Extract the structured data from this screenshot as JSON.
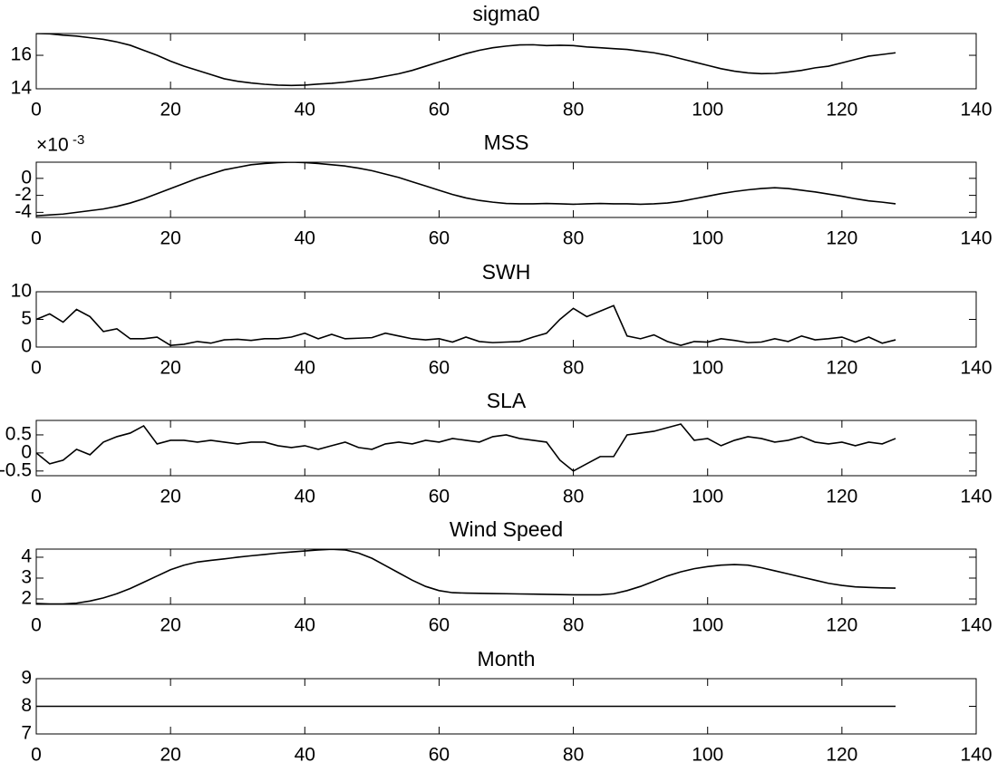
{
  "chart_data": [
    {
      "type": "line",
      "title": "sigma0",
      "color": "#000000",
      "x": [
        0,
        2,
        4,
        6,
        8,
        10,
        12,
        14,
        16,
        18,
        20,
        22,
        24,
        26,
        28,
        30,
        32,
        34,
        36,
        38,
        40,
        42,
        44,
        46,
        48,
        50,
        52,
        54,
        56,
        58,
        60,
        62,
        64,
        66,
        68,
        70,
        72,
        74,
        76,
        78,
        80,
        82,
        84,
        86,
        88,
        90,
        92,
        94,
        96,
        98,
        100,
        102,
        104,
        106,
        108,
        110,
        112,
        114,
        116,
        118,
        120,
        122,
        124,
        126,
        128
      ],
      "values": [
        17.3,
        17.28,
        17.2,
        17.15,
        17.05,
        16.95,
        16.8,
        16.6,
        16.3,
        16.0,
        15.65,
        15.35,
        15.1,
        14.85,
        14.6,
        14.45,
        14.35,
        14.27,
        14.22,
        14.2,
        14.22,
        14.28,
        14.33,
        14.4,
        14.5,
        14.6,
        14.75,
        14.9,
        15.1,
        15.35,
        15.6,
        15.85,
        16.1,
        16.3,
        16.45,
        16.55,
        16.62,
        16.63,
        16.58,
        16.6,
        16.58,
        16.5,
        16.45,
        16.4,
        16.35,
        16.25,
        16.15,
        16.0,
        15.8,
        15.6,
        15.4,
        15.2,
        15.05,
        14.95,
        14.9,
        14.92,
        15.0,
        15.1,
        15.25,
        15.35,
        15.55,
        15.75,
        15.95,
        16.05,
        16.15
      ],
      "xlim": [
        0,
        140
      ],
      "xticks": [
        0,
        20,
        40,
        60,
        80,
        100,
        120,
        140
      ],
      "ylim": [
        14,
        17.3
      ],
      "yticks": [
        14,
        16
      ]
    },
    {
      "type": "line",
      "title": "MSS",
      "color": "#000000",
      "offset_label": {
        "base": "×10",
        "exponent": "-3"
      },
      "x": [
        0,
        2,
        4,
        6,
        8,
        10,
        12,
        14,
        16,
        18,
        20,
        22,
        24,
        26,
        28,
        30,
        32,
        34,
        36,
        38,
        40,
        42,
        44,
        46,
        48,
        50,
        52,
        54,
        56,
        58,
        60,
        62,
        64,
        66,
        68,
        70,
        72,
        74,
        76,
        78,
        80,
        82,
        84,
        86,
        88,
        90,
        92,
        94,
        96,
        98,
        100,
        102,
        104,
        106,
        108,
        110,
        112,
        114,
        116,
        118,
        120,
        122,
        124,
        126,
        128
      ],
      "values": [
        -4.4,
        -4.3,
        -4.2,
        -4.0,
        -3.8,
        -3.6,
        -3.3,
        -2.9,
        -2.4,
        -1.8,
        -1.2,
        -0.6,
        0.0,
        0.5,
        1.0,
        1.3,
        1.6,
        1.75,
        1.85,
        1.9,
        1.85,
        1.75,
        1.6,
        1.45,
        1.2,
        0.9,
        0.5,
        0.1,
        -0.4,
        -0.9,
        -1.4,
        -1.9,
        -2.3,
        -2.6,
        -2.8,
        -2.95,
        -3.0,
        -3.0,
        -2.95,
        -3.0,
        -3.05,
        -3.0,
        -2.95,
        -3.0,
        -3.0,
        -3.05,
        -3.0,
        -2.9,
        -2.7,
        -2.4,
        -2.1,
        -1.8,
        -1.55,
        -1.35,
        -1.2,
        -1.1,
        -1.2,
        -1.4,
        -1.6,
        -1.85,
        -2.1,
        -2.4,
        -2.65,
        -2.8,
        -3.0
      ],
      "xlim": [
        0,
        140
      ],
      "xticks": [
        0,
        20,
        40,
        60,
        80,
        100,
        120,
        140
      ],
      "ylim": [
        -4.6,
        1.9
      ],
      "yticks": [
        -4,
        -2,
        0
      ]
    },
    {
      "type": "line",
      "title": "SWH",
      "color": "#000000",
      "x": [
        0,
        2,
        4,
        6,
        8,
        10,
        12,
        14,
        16,
        18,
        20,
        22,
        24,
        26,
        28,
        30,
        32,
        34,
        36,
        38,
        40,
        42,
        44,
        46,
        48,
        50,
        52,
        54,
        56,
        58,
        60,
        62,
        64,
        66,
        68,
        70,
        72,
        74,
        76,
        78,
        80,
        82,
        84,
        86,
        88,
        90,
        92,
        94,
        96,
        98,
        100,
        102,
        104,
        106,
        108,
        110,
        112,
        114,
        116,
        118,
        120,
        122,
        124,
        126,
        128
      ],
      "values": [
        5,
        6,
        4.5,
        6.8,
        5.5,
        2.8,
        3.3,
        1.5,
        1.5,
        1.8,
        0.3,
        0.5,
        1.0,
        0.7,
        1.3,
        1.4,
        1.2,
        1.5,
        1.5,
        1.8,
        2.5,
        1.5,
        2.3,
        1.5,
        1.6,
        1.7,
        2.5,
        2.0,
        1.5,
        1.3,
        1.5,
        0.9,
        1.8,
        1.0,
        0.8,
        0.9,
        1.0,
        1.8,
        2.5,
        5.0,
        7.0,
        5.5,
        6.5,
        7.5,
        2.0,
        1.5,
        2.2,
        1.0,
        0.3,
        1.0,
        0.9,
        1.5,
        1.2,
        0.8,
        0.9,
        1.5,
        1.0,
        2.0,
        1.3,
        1.5,
        1.8,
        0.9,
        1.8,
        0.7,
        1.3
      ],
      "xlim": [
        0,
        140
      ],
      "xticks": [
        0,
        20,
        40,
        60,
        80,
        100,
        120,
        140
      ],
      "ylim": [
        0,
        10
      ],
      "yticks": [
        0,
        5,
        10
      ]
    },
    {
      "type": "line",
      "title": "SLA",
      "color": "#000000",
      "x": [
        0,
        2,
        4,
        6,
        8,
        10,
        12,
        14,
        16,
        18,
        20,
        22,
        24,
        26,
        28,
        30,
        32,
        34,
        36,
        38,
        40,
        42,
        44,
        46,
        48,
        50,
        52,
        54,
        56,
        58,
        60,
        62,
        64,
        66,
        68,
        70,
        72,
        74,
        76,
        78,
        80,
        82,
        84,
        86,
        88,
        90,
        92,
        94,
        96,
        98,
        100,
        102,
        104,
        106,
        108,
        110,
        112,
        114,
        116,
        118,
        120,
        122,
        124,
        126,
        128
      ],
      "values": [
        0,
        -0.3,
        -0.2,
        0.1,
        -0.05,
        0.3,
        0.45,
        0.55,
        0.75,
        0.25,
        0.35,
        0.35,
        0.3,
        0.35,
        0.3,
        0.25,
        0.3,
        0.3,
        0.2,
        0.15,
        0.2,
        0.1,
        0.2,
        0.3,
        0.15,
        0.1,
        0.25,
        0.3,
        0.25,
        0.35,
        0.3,
        0.4,
        0.35,
        0.3,
        0.45,
        0.5,
        0.4,
        0.35,
        0.3,
        -0.2,
        -0.5,
        -0.3,
        -0.1,
        -0.1,
        0.5,
        0.55,
        0.6,
        0.7,
        0.8,
        0.35,
        0.4,
        0.2,
        0.35,
        0.45,
        0.4,
        0.3,
        0.35,
        0.45,
        0.3,
        0.25,
        0.3,
        0.2,
        0.3,
        0.25,
        0.4
      ],
      "xlim": [
        0,
        140
      ],
      "xticks": [
        0,
        20,
        40,
        60,
        80,
        100,
        120,
        140
      ],
      "ylim": [
        -0.63,
        0.9
      ],
      "yticks": [
        -0.5,
        0,
        0.5
      ]
    },
    {
      "type": "line",
      "title": "Wind Speed",
      "color": "#000000",
      "x": [
        0,
        2,
        4,
        6,
        8,
        10,
        12,
        14,
        16,
        18,
        20,
        22,
        24,
        26,
        28,
        30,
        32,
        34,
        36,
        38,
        40,
        42,
        44,
        46,
        48,
        50,
        52,
        54,
        56,
        58,
        60,
        62,
        64,
        66,
        68,
        70,
        72,
        74,
        76,
        78,
        80,
        82,
        84,
        86,
        88,
        90,
        92,
        94,
        96,
        98,
        100,
        102,
        104,
        106,
        108,
        110,
        112,
        114,
        116,
        118,
        120,
        122,
        124,
        126,
        128
      ],
      "values": [
        1.78,
        1.76,
        1.76,
        1.8,
        1.9,
        2.05,
        2.25,
        2.5,
        2.8,
        3.1,
        3.4,
        3.62,
        3.77,
        3.85,
        3.92,
        4.0,
        4.07,
        4.13,
        4.2,
        4.25,
        4.3,
        4.35,
        4.38,
        4.35,
        4.2,
        3.95,
        3.6,
        3.25,
        2.9,
        2.6,
        2.4,
        2.3,
        2.28,
        2.27,
        2.26,
        2.25,
        2.24,
        2.23,
        2.22,
        2.21,
        2.2,
        2.2,
        2.2,
        2.25,
        2.4,
        2.6,
        2.85,
        3.1,
        3.3,
        3.45,
        3.55,
        3.62,
        3.65,
        3.62,
        3.5,
        3.35,
        3.2,
        3.05,
        2.9,
        2.75,
        2.65,
        2.58,
        2.55,
        2.53,
        2.52
      ],
      "xlim": [
        0,
        140
      ],
      "xticks": [
        0,
        20,
        40,
        60,
        80,
        100,
        120,
        140
      ],
      "ylim": [
        1.74,
        4.39
      ],
      "yticks": [
        2,
        3,
        4
      ]
    },
    {
      "type": "line",
      "title": "Month",
      "color": "#000000",
      "x": [
        0,
        2,
        4,
        6,
        8,
        10,
        12,
        14,
        16,
        18,
        20,
        22,
        24,
        26,
        28,
        30,
        32,
        34,
        36,
        38,
        40,
        42,
        44,
        46,
        48,
        50,
        52,
        54,
        56,
        58,
        60,
        62,
        64,
        66,
        68,
        70,
        72,
        74,
        76,
        78,
        80,
        82,
        84,
        86,
        88,
        90,
        92,
        94,
        96,
        98,
        100,
        102,
        104,
        106,
        108,
        110,
        112,
        114,
        116,
        118,
        120,
        122,
        124,
        126,
        128
      ],
      "values": [
        8,
        8,
        8,
        8,
        8,
        8,
        8,
        8,
        8,
        8,
        8,
        8,
        8,
        8,
        8,
        8,
        8,
        8,
        8,
        8,
        8,
        8,
        8,
        8,
        8,
        8,
        8,
        8,
        8,
        8,
        8,
        8,
        8,
        8,
        8,
        8,
        8,
        8,
        8,
        8,
        8,
        8,
        8,
        8,
        8,
        8,
        8,
        8,
        8,
        8,
        8,
        8,
        8,
        8,
        8,
        8,
        8,
        8,
        8,
        8,
        8,
        8,
        8,
        8,
        8
      ],
      "xlim": [
        0,
        140
      ],
      "xticks": [
        0,
        20,
        40,
        60,
        80,
        100,
        120,
        140
      ],
      "ylim": [
        7,
        9
      ],
      "yticks": [
        7,
        8,
        9
      ]
    }
  ]
}
